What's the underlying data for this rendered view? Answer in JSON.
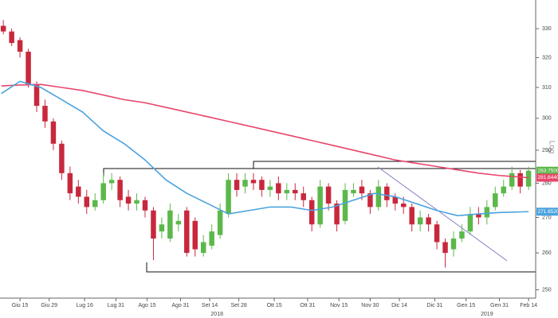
{
  "chart_data": {
    "type": "candlestick",
    "log_scale": true,
    "scale_label": "Log",
    "xlim": [
      -9.6,
      247.4
    ],
    "ylim": [
      247.8,
      340.2
    ],
    "yticks": [
      250,
      260,
      270,
      280,
      290,
      300,
      310,
      320,
      330
    ],
    "xticks": [
      {
        "value": 0,
        "label": "Giu 15"
      },
      {
        "value": 14,
        "label": "Giu 29"
      },
      {
        "value": 31,
        "label": "Lug 16"
      },
      {
        "value": 46,
        "label": "Lug 31"
      },
      {
        "value": 61,
        "label": "Ago 15"
      },
      {
        "value": 77,
        "label": "Ago 31"
      },
      {
        "value": 91,
        "label": "Set 14"
      },
      {
        "value": 105,
        "label": "Set 28"
      },
      {
        "value": 122,
        "label": "Ott 15"
      },
      {
        "value": 138,
        "label": "Ott 31"
      },
      {
        "value": 153,
        "label": "Nov 15"
      },
      {
        "value": 168,
        "label": "Nov 30"
      },
      {
        "value": 182,
        "label": "Dic 14"
      },
      {
        "value": 199,
        "label": "Dic 31"
      },
      {
        "value": 214,
        "label": "Gen 15"
      },
      {
        "value": 230,
        "label": "Gen 31"
      },
      {
        "value": 244,
        "label": "Feb 14"
      }
    ],
    "year_ticks": [
      {
        "value": 94.5,
        "label": "2018"
      },
      {
        "value": 224,
        "label": "2019"
      }
    ],
    "up_color": "#5cb84a",
    "down_color": "#c8283c",
    "x": [
      -8,
      -4,
      0,
      4,
      8,
      12,
      16,
      20,
      24,
      28,
      32,
      36,
      40,
      44,
      48,
      52,
      56,
      60,
      64,
      68,
      72,
      76,
      80,
      84,
      88,
      92,
      96,
      100,
      104,
      108,
      112,
      116,
      120,
      124,
      128,
      132,
      136,
      140,
      144,
      148,
      152,
      156,
      160,
      164,
      168,
      172,
      176,
      180,
      184,
      188,
      192,
      196,
      200,
      204,
      208,
      212,
      216,
      220,
      224,
      228,
      232,
      236,
      240,
      244
    ],
    "open": [
      331,
      329,
      326,
      322,
      311,
      304,
      299,
      292,
      283,
      279,
      276,
      273,
      275,
      280,
      281,
      276,
      274,
      275,
      272,
      266,
      264,
      268,
      272,
      269,
      260,
      262,
      265,
      271,
      281,
      279,
      281,
      281,
      278,
      280,
      277,
      278,
      277,
      275,
      268,
      279,
      274,
      269,
      277,
      279,
      277,
      273,
      279,
      276,
      274,
      273,
      268,
      270,
      268,
      263,
      261,
      264,
      266,
      271,
      270,
      273,
      277,
      279,
      283,
      279
    ],
    "high": [
      333,
      330,
      327,
      323,
      312,
      306,
      300,
      293,
      285,
      281,
      278,
      277,
      283,
      283,
      282,
      278,
      277,
      276,
      273,
      270,
      274,
      271,
      273,
      270,
      265,
      268,
      274,
      283,
      283,
      283,
      283,
      282,
      281,
      282,
      280,
      280,
      279,
      276,
      281,
      280,
      275,
      280,
      280,
      281,
      278,
      281,
      280,
      277,
      276,
      274,
      272,
      271,
      269,
      264,
      266,
      268,
      273,
      273,
      275,
      279,
      281,
      285,
      284,
      285
    ],
    "low": [
      328,
      324,
      320,
      310,
      302,
      297,
      290,
      281,
      275,
      274,
      271,
      272,
      274,
      278,
      273,
      272,
      272,
      270,
      258,
      264,
      263,
      266,
      259,
      259,
      259,
      261,
      264,
      270,
      276,
      277,
      278,
      276,
      276,
      275,
      275,
      275,
      273,
      266,
      267,
      272,
      266,
      268,
      276,
      275,
      271,
      272,
      273,
      272,
      271,
      266,
      266,
      266,
      261,
      256,
      259,
      263,
      265,
      268,
      268,
      272,
      276,
      278,
      277,
      278
    ],
    "close": [
      329,
      325,
      322,
      311,
      304,
      299,
      292,
      283,
      277,
      276,
      273,
      275,
      280,
      281,
      275,
      274,
      275,
      272,
      264,
      268,
      272,
      269,
      260,
      261,
      263,
      266,
      272,
      281,
      278,
      281,
      280,
      278,
      279,
      277,
      278,
      277,
      275,
      268,
      279,
      274,
      268,
      278,
      278,
      277,
      273,
      279,
      275,
      274,
      273,
      268,
      270,
      268,
      263,
      260,
      264,
      266,
      271,
      270,
      273,
      277,
      279,
      283,
      279,
      283.75
    ],
    "close_label": "283.7500",
    "close_label_color": "#5cb84a",
    "series": [
      {
        "color": "#e8466a",
        "x": [
          -9,
          0,
          10,
          20,
          30,
          40,
          50,
          60,
          70,
          80,
          90,
          100,
          110,
          120,
          130,
          140,
          150,
          160,
          170,
          180,
          190,
          200,
          210,
          220,
          230,
          244
        ],
        "values": [
          310.5,
          310.8,
          311,
          310,
          309,
          307.5,
          306,
          305,
          303.5,
          302,
          300.5,
          299,
          297.5,
          296,
          294.5,
          293,
          291.5,
          290,
          288.5,
          287,
          286,
          285,
          284,
          283,
          282.3,
          281.644
        ],
        "end_label": "281.6440"
      },
      {
        "color": "#4aa3df",
        "x": [
          -9,
          0,
          10,
          20,
          30,
          40,
          50,
          60,
          70,
          80,
          90,
          100,
          110,
          120,
          130,
          140,
          150,
          160,
          170,
          180,
          190,
          200,
          210,
          220,
          230,
          244
        ],
        "values": [
          308,
          312,
          310,
          306,
          302,
          296,
          292,
          287,
          281,
          277,
          274,
          271,
          272,
          273,
          273,
          272,
          273,
          275,
          277,
          276,
          274,
          272,
          270.5,
          271,
          271.4,
          271.652
        ],
        "end_label": "271.6520"
      }
    ]
  }
}
